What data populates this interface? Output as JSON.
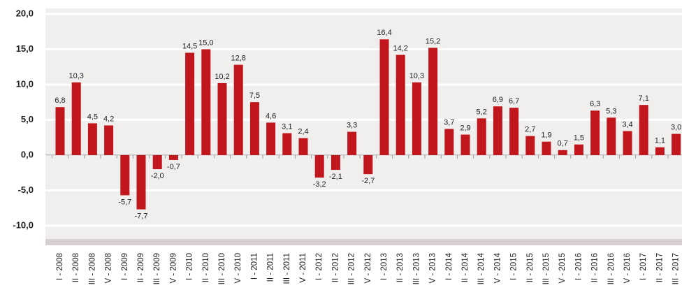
{
  "chart_data": {
    "type": "bar",
    "categories": [
      "I - 2008",
      "II - 2008",
      "III - 2008",
      "V - 2008",
      "I - 2009",
      "II - 2009",
      "III - 2009",
      "V - 2009",
      "I - 2010",
      "II - 2010",
      "III - 2010",
      "V - 2010",
      "I - 2011",
      "II - 2011",
      "III - 2011",
      "V - 2011",
      "I - 2012",
      "II - 2012",
      "III - 2012",
      "V - 2012",
      "I - 2013",
      "II - 2013",
      "III - 2013",
      "V - 2013",
      "I - 2014",
      "II - 2014",
      "III - 2014",
      "V - 2014",
      "I - 2015",
      "II - 2015",
      "III - 2015",
      "V - 2015",
      "I - 2016",
      "II - 2016",
      "III - 2016",
      "V - 2016",
      "I - 2017",
      "II - 2017",
      "III - 2017"
    ],
    "values": [
      6.8,
      10.3,
      4.5,
      4.2,
      -5.7,
      -7.7,
      -2.0,
      -0.7,
      14.5,
      15.0,
      10.2,
      12.8,
      7.5,
      4.6,
      3.1,
      2.4,
      -3.2,
      -2.1,
      3.3,
      -2.7,
      16.4,
      14.2,
      10.3,
      15.2,
      3.7,
      2.9,
      5.2,
      6.9,
      6.7,
      2.7,
      1.9,
      0.7,
      1.5,
      6.3,
      5.3,
      3.4,
      7.1,
      1.1,
      3.0
    ],
    "value_labels": [
      "6,8",
      "10,3",
      "4,5",
      "4,2",
      "-5,7",
      "-7,7",
      "-2,0",
      "-0,7",
      "14,5",
      "15,0",
      "10,2",
      "12,8",
      "7,5",
      "4,6",
      "3,1",
      "2,4",
      "-3,2",
      "-2,1",
      "3,3",
      "-2,7",
      "16,4",
      "14,2",
      "10,3",
      "15,2",
      "3,7",
      "2,9",
      "5,2",
      "6,9",
      "6,7",
      "2,7",
      "1,9",
      "0,7",
      "1,5",
      "6,3",
      "5,3",
      "3,4",
      "7,1",
      "1,1",
      "3,0"
    ],
    "color": "#c0161c",
    "ylim": [
      -12,
      20
    ],
    "yticks": [
      {
        "value": -10,
        "label": "-10,0"
      },
      {
        "value": -5,
        "label": "-5,0"
      },
      {
        "value": 0,
        "label": "0,0"
      },
      {
        "value": 5,
        "label": "5,0"
      },
      {
        "value": 10,
        "label": "10,0"
      },
      {
        "value": 15,
        "label": "15,0"
      },
      {
        "value": 20,
        "label": "20,0"
      }
    ],
    "grid": true
  }
}
